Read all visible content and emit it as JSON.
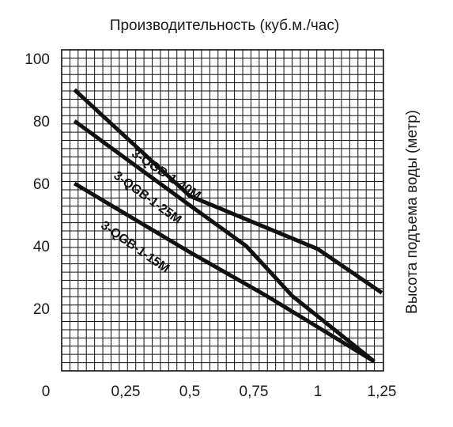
{
  "chart_data": {
    "type": "line",
    "title": "Производительность (куб.м./час)",
    "ylabel": "Высота подъема воды (метр)",
    "xlabel": "",
    "xlim": [
      0,
      1.25
    ],
    "ylim": [
      0,
      100
    ],
    "x_ticks": [
      "0",
      "0,25",
      "0,5",
      "0,75",
      "1",
      "1,25"
    ],
    "y_ticks": [
      "100",
      "80",
      "60",
      "40",
      "20"
    ],
    "grid": true,
    "legend": "none",
    "series": [
      {
        "name": "3-QGB-1-40M",
        "points": [
          [
            0.05,
            90
          ],
          [
            0.5,
            56
          ],
          [
            1.0,
            39
          ],
          [
            1.25,
            25
          ]
        ]
      },
      {
        "name": "3-QGB-1-25M",
        "points": [
          [
            0.05,
            80
          ],
          [
            0.5,
            53
          ],
          [
            0.72,
            40
          ],
          [
            0.9,
            24
          ],
          [
            1.22,
            3
          ]
        ]
      },
      {
        "name": "3-QGB-1-15M",
        "points": [
          [
            0.05,
            60
          ],
          [
            0.5,
            38
          ],
          [
            0.8,
            24
          ],
          [
            1.22,
            3
          ]
        ]
      }
    ]
  }
}
